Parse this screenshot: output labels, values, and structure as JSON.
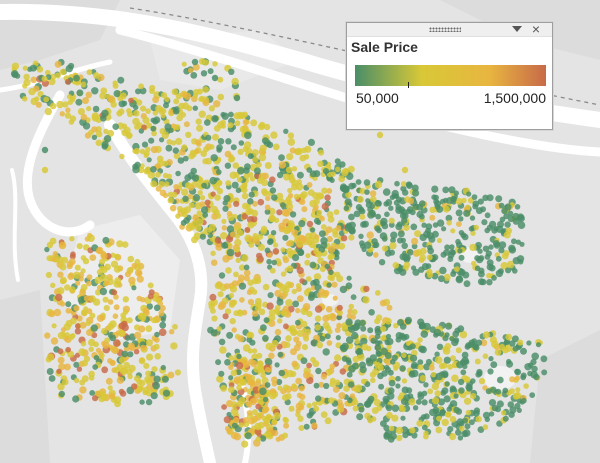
{
  "legend": {
    "title": "Sale Price",
    "min_label": "50,000",
    "max_label": "1,500,000",
    "colors": [
      "#4a8e68",
      "#d8c837",
      "#e8b640",
      "#c86a48"
    ],
    "close_glyph": "×",
    "icons": [
      "grip-icon",
      "dropdown-icon",
      "close-icon"
    ]
  },
  "map": {
    "background": "#e6e6e6",
    "land_color": "#e1e1e1",
    "river_color": "#ffffff",
    "low_price_color": "#4a8e68",
    "mid_price_color": "#d8c837",
    "high_price_color": "#c86a48"
  }
}
